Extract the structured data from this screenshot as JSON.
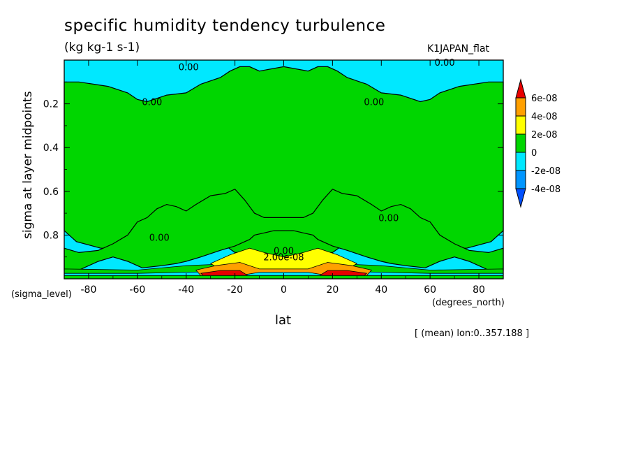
{
  "chart_data": {
    "type": "heatmap",
    "title": "specific humidity tendency turbulence",
    "units": "(kg kg-1 s-1)",
    "dataset": "K1JAPAN_flat",
    "xlabel": "lat",
    "xunit": "(degrees_north)",
    "ylabel": "sigma at layer midpoints",
    "yunit": "(sigma_level)",
    "note": "[ (mean) lon:0..357.188 ]",
    "xlim": [
      -90,
      90
    ],
    "ylim": [
      1.0,
      0.0
    ],
    "x_ticks": [
      -80,
      -60,
      -40,
      -20,
      0,
      20,
      40,
      60,
      80
    ],
    "x_tick_labels": [
      "-80",
      "-60",
      "-40",
      "-20",
      "0",
      "20",
      "40",
      "60",
      "80"
    ],
    "y_ticks": [
      0.2,
      0.4,
      0.6,
      0.8
    ],
    "y_tick_labels": [
      "0.2",
      "0.4",
      "0.6",
      "0.8"
    ],
    "legend": {
      "placement": "right",
      "levels": [
        "6e-08",
        "4e-08",
        "2e-08",
        "0",
        "-2e-08",
        "-4e-08"
      ],
      "colors": [
        "#e80000",
        "#ffa000",
        "#ffff00",
        "#00d600",
        "#00e8ff",
        "#0096ff",
        "#0050ff"
      ]
    },
    "contour_labels": [
      {
        "text": "0.00",
        "x": -39,
        "y": 0.03
      },
      {
        "text": "0.00",
        "x": 66,
        "y": 0.01
      },
      {
        "text": "0.00",
        "x": -54,
        "y": 0.19
      },
      {
        "text": "0.00",
        "x": 37,
        "y": 0.19
      },
      {
        "text": "0.00",
        "x": -51,
        "y": 0.81
      },
      {
        "text": "0.00",
        "x": 43,
        "y": 0.72
      },
      {
        "text": "0.00",
        "x": 0,
        "y": 0.87
      },
      {
        "text": "2.00e-08",
        "x": 0,
        "y": 0.9
      }
    ],
    "regions": [
      {
        "level": "0 to 2e-08",
        "color": "#00d600",
        "x": [
          -90,
          -85,
          -75,
          -60,
          -45,
          -30,
          -20,
          -10,
          -4,
          4,
          10,
          20,
          30,
          45,
          60,
          75,
          85,
          90,
          90,
          84,
          72,
          64,
          60,
          56,
          48,
          40,
          34,
          26,
          22,
          18,
          14,
          10,
          0,
          -10,
          -14,
          -18,
          -22,
          -26,
          -34,
          -40,
          -48,
          -56,
          -60,
          -64,
          -72,
          -84,
          -90
        ],
        "y": [
          0.78,
          0.83,
          0.86,
          0.86,
          0.84,
          0.8,
          0.88,
          0.88,
          0.91,
          0.91,
          0.88,
          0.88,
          0.8,
          0.84,
          0.86,
          0.86,
          0.83,
          0.78,
          0.1,
          0.1,
          0.12,
          0.15,
          0.18,
          0.19,
          0.16,
          0.15,
          0.11,
          0.08,
          0.05,
          0.03,
          0.03,
          0.05,
          0.03,
          0.05,
          0.03,
          0.03,
          0.05,
          0.08,
          0.11,
          0.15,
          0.16,
          0.19,
          0.18,
          0.15,
          0.12,
          0.1,
          0.1
        ]
      },
      {
        "level": "0 to 2e-08 (lower band)",
        "color": "#00d600",
        "x": [
          -90,
          -84,
          -76,
          -70,
          -64,
          -60,
          -56,
          -52,
          -48,
          -44,
          -40,
          -36,
          -30,
          -24,
          -20,
          -16,
          -12,
          -8,
          8,
          12,
          16,
          20,
          24,
          30,
          36,
          40,
          44,
          48,
          52,
          56,
          60,
          64,
          70,
          76,
          84,
          90,
          90,
          84,
          76,
          70,
          64,
          58,
          50,
          44,
          40,
          34,
          26,
          20,
          14,
          12,
          8,
          4,
          -4,
          -8,
          -12,
          -14,
          -20,
          -26,
          -34,
          -40,
          -44,
          -50,
          -58,
          -64,
          -70,
          -76,
          -84,
          -90
        ],
        "y": [
          0.86,
          0.88,
          0.87,
          0.84,
          0.8,
          0.74,
          0.72,
          0.68,
          0.66,
          0.67,
          0.69,
          0.66,
          0.62,
          0.61,
          0.59,
          0.64,
          0.7,
          0.72,
          0.72,
          0.7,
          0.64,
          0.59,
          0.61,
          0.62,
          0.66,
          0.69,
          0.67,
          0.66,
          0.68,
          0.72,
          0.74,
          0.8,
          0.84,
          0.87,
          0.88,
          0.86,
          0.96,
          0.96,
          0.92,
          0.9,
          0.92,
          0.95,
          0.94,
          0.93,
          0.92,
          0.9,
          0.87,
          0.85,
          0.82,
          0.8,
          0.79,
          0.78,
          0.78,
          0.79,
          0.8,
          0.82,
          0.85,
          0.87,
          0.9,
          0.92,
          0.93,
          0.94,
          0.95,
          0.92,
          0.9,
          0.92,
          0.96,
          0.96
        ]
      }
    ]
  }
}
